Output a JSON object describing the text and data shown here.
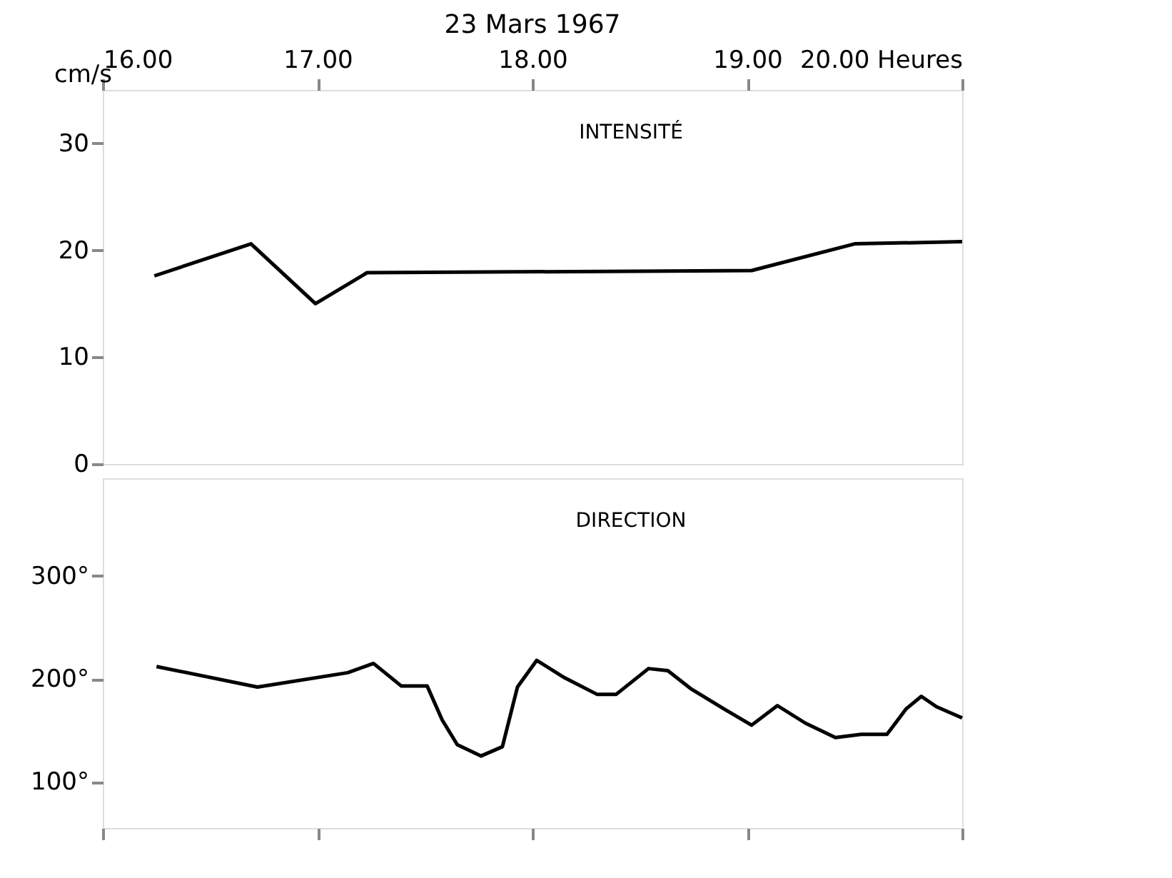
{
  "chart_data": [
    {
      "type": "line",
      "title": "23 Mars 1967",
      "ylabel": "cm/s",
      "annotations": [
        "INTENSITÉ"
      ],
      "x": [
        16.24,
        16.69,
        16.99,
        17.23,
        19.02,
        19.5,
        20.0
      ],
      "series": [
        {
          "color": "#000000",
          "values": [
            17.6,
            20.6,
            15.0,
            17.9,
            18.1,
            20.6,
            20.8
          ]
        }
      ],
      "xlim": [
        16,
        20
      ],
      "xticks": [
        {
          "value": 16,
          "label": "16.00"
        },
        {
          "value": 17,
          "label": "17.00"
        },
        {
          "value": 18,
          "label": "18.00"
        },
        {
          "value": 19,
          "label": "19.00"
        },
        {
          "value": 20,
          "label": "20.00 Heures"
        }
      ],
      "ylim": [
        0,
        35
      ],
      "yticks": [
        0,
        10,
        20,
        30
      ]
    },
    {
      "type": "line",
      "annotations": [
        "DIRECTION"
      ],
      "tick_labels": "y",
      "x": [
        16.25,
        16.72,
        17.14,
        17.26,
        17.39,
        17.51,
        17.58,
        17.65,
        17.76,
        17.86,
        17.93,
        18.02,
        18.15,
        18.3,
        18.39,
        18.54,
        18.63,
        18.74,
        18.89,
        19.02,
        19.14,
        19.27,
        19.41,
        19.53,
        19.65,
        19.74,
        19.81,
        19.88,
        20.0
      ],
      "series": [
        {
          "color": "#000000",
          "values": [
            212,
            192,
            206,
            215,
            193,
            193,
            160,
            136,
            125,
            134,
            192,
            218,
            201,
            185,
            185,
            210,
            208,
            190,
            171,
            155,
            174,
            157,
            143,
            146,
            146,
            171,
            183,
            173,
            162
          ]
        }
      ],
      "xlim": [
        16,
        20
      ],
      "xticks": [
        {
          "value": 16,
          "label": null
        },
        {
          "value": 17,
          "label": null
        },
        {
          "value": 18,
          "label": null
        },
        {
          "value": 19,
          "label": null
        },
        {
          "value": 20,
          "label": null
        }
      ],
      "ylim": [
        55,
        395
      ],
      "yticks": [
        {
          "value": 100,
          "label": "100°"
        },
        {
          "value": 200,
          "label": "200°"
        },
        {
          "value": 300,
          "label": "300°"
        }
      ]
    }
  ]
}
